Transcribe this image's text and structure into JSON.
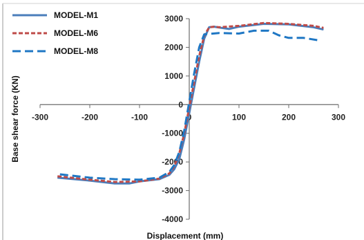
{
  "chart_data": {
    "type": "line",
    "title": "",
    "xlabel": "Displacement  (mm)",
    "ylabel": "Base shear force (KN)",
    "xlim": [
      -300,
      300
    ],
    "ylim": [
      -4000,
      3000
    ],
    "xticks": [
      -300,
      -200,
      -100,
      0,
      100,
      200,
      300
    ],
    "yticks": [
      -4000,
      -3000,
      -2000,
      -1000,
      0,
      1000,
      2000,
      3000
    ],
    "grid": false,
    "legend": "top-left",
    "series": [
      {
        "name": "MODEL-M1",
        "color": "#4a7ebb",
        "dash": "solid",
        "x": [
          -265,
          -200,
          -150,
          -120,
          -100,
          -60,
          -40,
          -30,
          -20,
          -10,
          0,
          10,
          20,
          30,
          40,
          50,
          60,
          80,
          100,
          150,
          200,
          250,
          270
        ],
        "y": [
          -2550,
          -2650,
          -2750,
          -2750,
          -2680,
          -2600,
          -2450,
          -2250,
          -1900,
          -1200,
          -300,
          600,
          1500,
          2300,
          2700,
          2720,
          2690,
          2640,
          2720,
          2820,
          2800,
          2700,
          2620
        ]
      },
      {
        "name": "MODEL-M6",
        "color": "#be4b48",
        "dash": "short",
        "x": [
          -265,
          -200,
          -150,
          -100,
          -60,
          -40,
          -30,
          -20,
          -10,
          0,
          10,
          20,
          30,
          40,
          50,
          60,
          100,
          150,
          200,
          250,
          270
        ],
        "y": [
          -2500,
          -2620,
          -2700,
          -2680,
          -2580,
          -2400,
          -2150,
          -1700,
          -1000,
          -100,
          800,
          1700,
          2400,
          2700,
          2720,
          2700,
          2750,
          2850,
          2820,
          2750,
          2680
        ]
      },
      {
        "name": "MODEL-M8",
        "color": "#1f77c4",
        "dash": "long",
        "x": [
          -260,
          -200,
          -150,
          -100,
          -60,
          -40,
          -30,
          -20,
          -10,
          0,
          10,
          20,
          30,
          60,
          100,
          130,
          160,
          180,
          200,
          230,
          265
        ],
        "y": [
          -2430,
          -2550,
          -2600,
          -2620,
          -2550,
          -2350,
          -2100,
          -1650,
          -900,
          100,
          1100,
          2000,
          2450,
          2500,
          2480,
          2580,
          2580,
          2420,
          2330,
          2330,
          2230
        ]
      }
    ]
  }
}
